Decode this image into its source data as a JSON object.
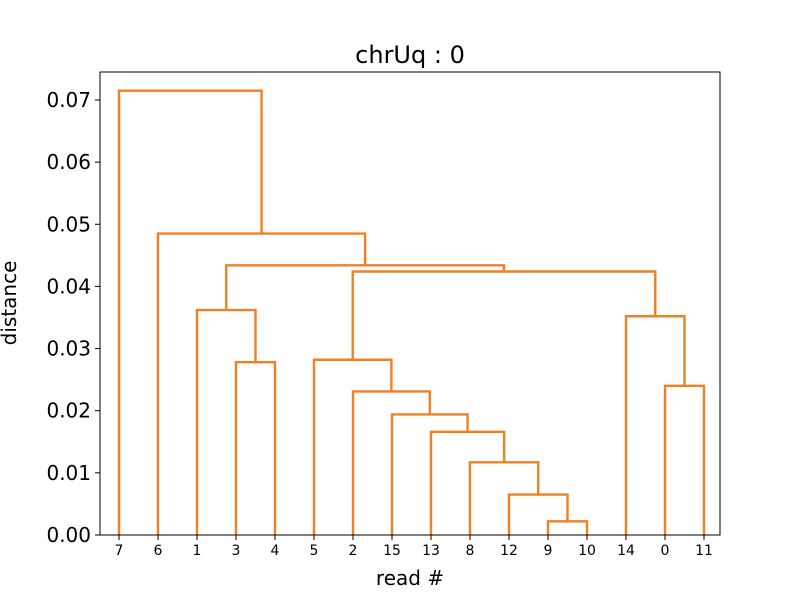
{
  "chart_data": {
    "type": "dendrogram",
    "title": "chrUq : 0",
    "xlabel": "read #",
    "ylabel": "distance",
    "ylim": [
      0,
      0.0745
    ],
    "yticks": [
      "0.00",
      "0.01",
      "0.02",
      "0.03",
      "0.04",
      "0.05",
      "0.06",
      "0.07"
    ],
    "leaves": [
      "7",
      "6",
      "1",
      "3",
      "4",
      "5",
      "2",
      "15",
      "13",
      "8",
      "12",
      "9",
      "10",
      "14",
      "0",
      "11"
    ],
    "link_color": "#f28023",
    "merges": [
      {
        "left": "9",
        "right": "10",
        "height": 0.0022
      },
      {
        "left": "12",
        "right": "9+10",
        "height": 0.0065
      },
      {
        "left": "8",
        "right": "12+9+10",
        "height": 0.0117
      },
      {
        "left": "13",
        "right": "8+12+9+10",
        "height": 0.0166
      },
      {
        "left": "15",
        "right": "13+8+12+9+10",
        "height": 0.0194
      },
      {
        "left": "0",
        "right": "11",
        "height": 0.024
      },
      {
        "left": "3",
        "right": "4",
        "height": 0.0278
      },
      {
        "left": "5",
        "right": "2+15+13+8+12+9+10",
        "height": 0.0282
      },
      {
        "left": "2",
        "right": "15+13+8+12+9+10",
        "height": 0.0231
      },
      {
        "left": "14",
        "right": "0+11",
        "height": 0.0352
      },
      {
        "left": "1",
        "right": "3+4",
        "height": 0.0362
      },
      {
        "left": "5+2+15+13+8+12+9+10",
        "right": "14+0+11",
        "height": 0.0424
      },
      {
        "left": "1+3+4",
        "right": "5+2+15+13+8+12+9+10+14+0+11",
        "height": 0.0434
      },
      {
        "left": "6",
        "right": "1+3+4+5+2+15+13+8+12+9+10+14+0+11",
        "height": 0.0485
      },
      {
        "left": "7",
        "right": "6+1+3+4+5+2+15+13+8+12+9+10+14+0+11",
        "height": 0.0715
      }
    ]
  }
}
